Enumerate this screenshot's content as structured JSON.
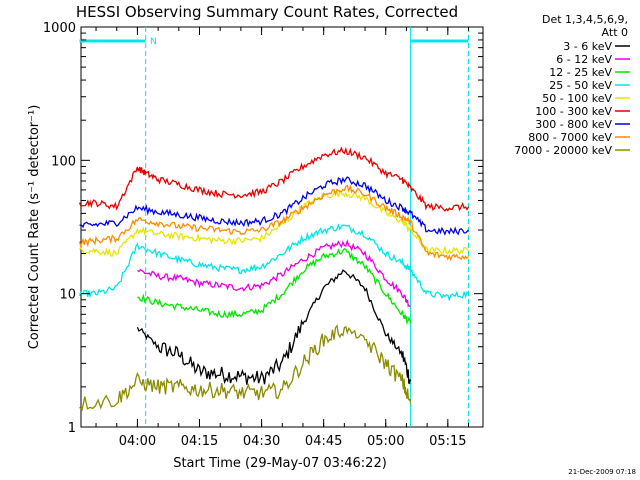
{
  "chart_data": {
    "type": "line",
    "title": "HESSI Observing Summary Count Rates, Corrected",
    "xlabel": "Start Time (29-May-07 03:46:22)",
    "ylabel": "Corrected Count Rate (s⁻¹ detector⁻¹)",
    "footer": "21-Dec-2009 07:18",
    "y_scale": "log",
    "ylim": [
      1,
      1000
    ],
    "xlim": [
      "03:46:22",
      "05:23:30"
    ],
    "x_ticks": [
      "04:00",
      "04:15",
      "04:30",
      "04:45",
      "05:00",
      "05:15"
    ],
    "y_ticks": [
      "1",
      "10",
      "100",
      "1000"
    ],
    "legend": {
      "placement": "right",
      "header_lines": [
        "Det 1,3,4,5,6,9,",
        "Att 0"
      ]
    },
    "annotations": {
      "night_marker": "N",
      "night_boundary_times": [
        "04:02",
        "05:06"
      ],
      "saa_boundary_times": [
        "05:20"
      ],
      "status_bar_segments": [
        [
          "03:46",
          "04:02"
        ],
        [
          "05:06",
          "05:20"
        ]
      ]
    },
    "series": [
      {
        "name": "3 - 6 keV",
        "color": "#000000",
        "x": [
          "04:00",
          "04:05",
          "04:10",
          "04:15",
          "04:20",
          "04:25",
          "04:30",
          "04:35",
          "04:40",
          "04:45",
          "04:50",
          "04:55",
          "05:00",
          "05:04",
          "05:06"
        ],
        "y": [
          5.5,
          4.0,
          3.5,
          2.6,
          2.5,
          2.4,
          2.3,
          3.0,
          6.0,
          11,
          15,
          11,
          5.0,
          3.5,
          2.2
        ]
      },
      {
        "name": "6 - 12 keV",
        "color": "#e600e6",
        "x": [
          "04:00",
          "04:05",
          "04:10",
          "04:15",
          "04:20",
          "04:25",
          "04:30",
          "04:35",
          "04:40",
          "04:45",
          "04:50",
          "04:55",
          "05:00",
          "05:04",
          "05:06"
        ],
        "y": [
          15,
          13.5,
          13,
          12,
          11.5,
          11,
          11.5,
          14,
          18,
          22,
          24,
          20,
          13,
          10,
          8
        ]
      },
      {
        "name": "12 - 25 keV",
        "color": "#00e600",
        "x": [
          "04:00",
          "04:05",
          "04:10",
          "04:15",
          "04:20",
          "04:25",
          "04:30",
          "04:35",
          "04:40",
          "04:45",
          "04:50",
          "04:55",
          "05:00",
          "05:04",
          "05:06"
        ],
        "y": [
          9.5,
          8.5,
          8,
          7.5,
          7,
          7,
          7.5,
          10,
          15,
          19,
          21,
          16,
          10,
          7,
          6
        ]
      },
      {
        "name": "25 - 50 keV",
        "color": "#00e6e6",
        "x": [
          "03:46",
          "03:50",
          "03:55",
          "04:00",
          "04:05",
          "04:10",
          "04:15",
          "04:20",
          "04:25",
          "04:30",
          "04:35",
          "04:40",
          "04:45",
          "04:50",
          "04:55",
          "05:00",
          "05:04",
          "05:06",
          "05:10",
          "05:15",
          "05:20"
        ],
        "y": [
          10,
          10,
          11,
          23,
          20,
          18,
          16.5,
          15.5,
          15,
          16,
          20,
          26,
          30,
          32,
          28,
          20,
          17,
          15,
          10,
          9.5,
          10
        ]
      },
      {
        "name": "50 - 100 keV",
        "color": "#e6e600",
        "x": [
          "03:46",
          "03:50",
          "03:55",
          "04:00",
          "04:05",
          "04:10",
          "04:15",
          "04:20",
          "04:25",
          "04:30",
          "04:35",
          "04:40",
          "04:45",
          "04:50",
          "04:55",
          "05:00",
          "05:04",
          "05:06",
          "05:10",
          "05:15",
          "05:20"
        ],
        "y": [
          21,
          21,
          20,
          30,
          28,
          27,
          26,
          25,
          25,
          26,
          33,
          45,
          54,
          57,
          52,
          40,
          35,
          30,
          21,
          21,
          21
        ]
      },
      {
        "name": "100 - 300 keV",
        "color": "#e60000",
        "x": [
          "03:46",
          "03:50",
          "03:55",
          "04:00",
          "04:02",
          "04:05",
          "04:10",
          "04:15",
          "04:20",
          "04:25",
          "04:30",
          "04:35",
          "04:40",
          "04:45",
          "04:50",
          "04:55",
          "05:00",
          "05:04",
          "05:06",
          "05:10",
          "05:15",
          "05:20"
        ],
        "y": [
          48,
          48,
          45,
          88,
          80,
          72,
          66,
          60,
          56,
          55,
          58,
          70,
          90,
          110,
          118,
          105,
          80,
          72,
          62,
          45,
          44,
          45
        ]
      },
      {
        "name": "300 - 800 keV",
        "color": "#0000e6",
        "x": [
          "03:46",
          "03:50",
          "03:55",
          "04:00",
          "04:05",
          "04:10",
          "04:15",
          "04:20",
          "04:25",
          "04:30",
          "04:35",
          "04:40",
          "04:45",
          "04:50",
          "04:55",
          "05:00",
          "05:04",
          "05:06",
          "05:10",
          "05:15",
          "05:20"
        ],
        "y": [
          32,
          33,
          34,
          44,
          41,
          39,
          37,
          35,
          34,
          35,
          40,
          52,
          65,
          72,
          65,
          50,
          44,
          40,
          30,
          29,
          30
        ]
      },
      {
        "name": "800 - 7000 keV",
        "color": "#ff8c00",
        "x": [
          "03:46",
          "03:50",
          "03:55",
          "04:00",
          "04:05",
          "04:10",
          "04:15",
          "04:20",
          "04:25",
          "04:30",
          "04:35",
          "04:40",
          "04:45",
          "04:50",
          "04:55",
          "05:00",
          "05:04",
          "05:06",
          "05:10",
          "05:15",
          "05:20"
        ],
        "y": [
          24,
          25,
          26,
          36,
          34,
          32,
          31,
          30,
          29,
          30,
          35,
          44,
          55,
          62,
          56,
          44,
          38,
          34,
          20,
          19,
          19
        ]
      },
      {
        "name": "7000 - 20000 keV",
        "color": "#8b8b00",
        "x": [
          "03:46",
          "03:55",
          "04:00",
          "04:05",
          "04:10",
          "04:15",
          "04:20",
          "04:25",
          "04:30",
          "04:35",
          "04:40",
          "04:45",
          "04:50",
          "04:55",
          "05:00",
          "05:04",
          "05:06"
        ],
        "y": [
          1.5,
          1.6,
          2.2,
          2.0,
          2.0,
          1.9,
          1.9,
          1.8,
          1.8,
          1.9,
          3.0,
          4.5,
          5.5,
          4.5,
          3.0,
          2.2,
          1.5
        ]
      }
    ]
  }
}
